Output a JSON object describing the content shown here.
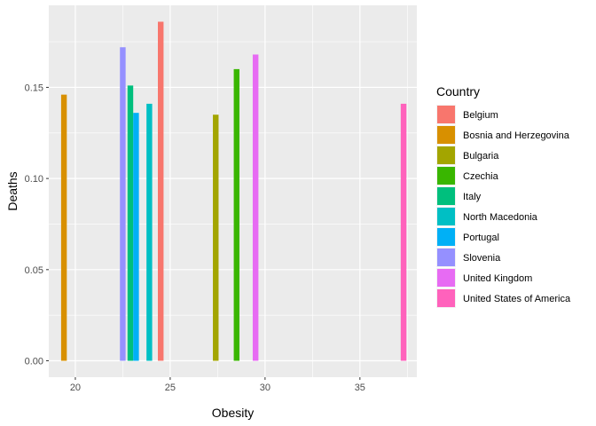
{
  "chart_data": {
    "type": "bar",
    "xlabel": "Obesity",
    "ylabel": "Deaths",
    "xlim": [
      18.6,
      38.0
    ],
    "ylim": [
      -0.009,
      0.195
    ],
    "x_ticks": [
      20,
      25,
      30,
      35
    ],
    "y_ticks": [
      0.0,
      0.05,
      0.1,
      0.15
    ],
    "x_tick_labels": [
      "20",
      "25",
      "30",
      "35"
    ],
    "y_tick_labels": [
      "0.00",
      "0.05",
      "0.10",
      "0.15"
    ],
    "bar_width": 0.3,
    "grid": true,
    "panel_background": "#ebebeb",
    "grid_color": "#ffffff",
    "legend": {
      "title": "Country",
      "position": "right"
    },
    "series": [
      {
        "name": "Belgium",
        "color": "#F8766D",
        "x": 24.5,
        "y": 0.186
      },
      {
        "name": "Bosnia and Herzegovina",
        "color": "#D89000",
        "x": 19.4,
        "y": 0.146
      },
      {
        "name": "Bulgaria",
        "color": "#A3A500",
        "x": 27.4,
        "y": 0.135
      },
      {
        "name": "Czechia",
        "color": "#39B600",
        "x": 28.5,
        "y": 0.16
      },
      {
        "name": "Italy",
        "color": "#00BF7D",
        "x": 22.9,
        "y": 0.151
      },
      {
        "name": "North Macedonia",
        "color": "#00BFC4",
        "x": 23.9,
        "y": 0.141
      },
      {
        "name": "Portugal",
        "color": "#00B0F6",
        "x": 23.2,
        "y": 0.136
      },
      {
        "name": "Slovenia",
        "color": "#9590FF",
        "x": 22.5,
        "y": 0.172
      },
      {
        "name": "United Kingdom",
        "color": "#E76BF3",
        "x": 29.5,
        "y": 0.168
      },
      {
        "name": "United States of America",
        "color": "#FF62BC",
        "x": 37.3,
        "y": 0.141
      }
    ]
  }
}
